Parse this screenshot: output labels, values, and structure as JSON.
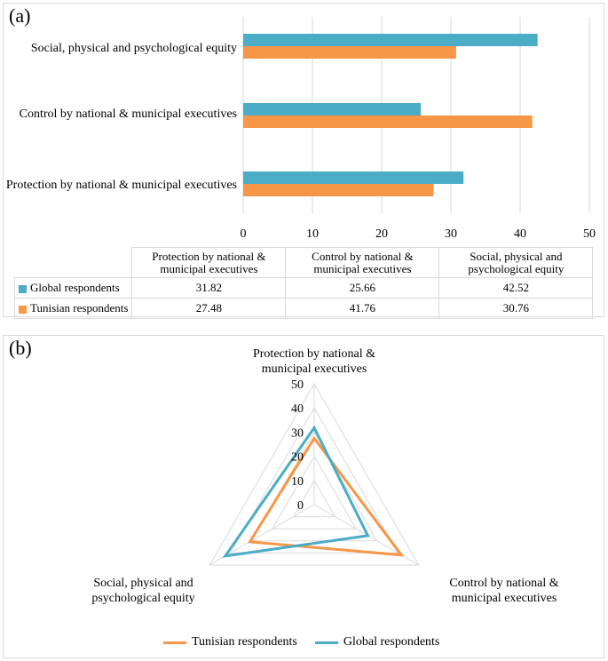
{
  "panel_a": {
    "label": "(a)"
  },
  "panel_b": {
    "label": "(b)"
  },
  "chart_data": [
    {
      "type": "bar",
      "orientation": "horizontal",
      "categories": [
        "Social, physical and psychological equity",
        "Control by national & municipal executives",
        "Protection by national & municipal executives"
      ],
      "series": [
        {
          "name": "Global respondents",
          "color": "#4bacc6",
          "values": [
            42.52,
            25.66,
            31.82
          ]
        },
        {
          "name": "Tunisian respondents",
          "color": "#f79646",
          "values": [
            30.76,
            41.76,
            27.48
          ]
        }
      ],
      "xlim": [
        0,
        50
      ],
      "xticks": [
        "0",
        "10",
        "20",
        "30",
        "40",
        "50"
      ],
      "gridlines": true,
      "data_table": {
        "headers": [
          "Protection by national & municipal executives",
          "Control by national & municipal executives",
          "Social, physical and psychological equity"
        ],
        "rows": [
          {
            "name": "Global respondents",
            "color": "#4bacc6",
            "values": [
              "31.82",
              "25.66",
              "42.52"
            ]
          },
          {
            "name": "Tunisian respondents",
            "color": "#f79646",
            "values": [
              "27.48",
              "41.76",
              "30.76"
            ]
          }
        ]
      }
    },
    {
      "type": "radar",
      "axes": [
        "Protection by national & municipal executives",
        "Control by national & municipal executives",
        "Social, physical and psychological equity"
      ],
      "rlim": [
        0,
        50
      ],
      "rticks": [
        "0",
        "10",
        "20",
        "30",
        "40",
        "50"
      ],
      "series": [
        {
          "name": "Tunisian respondents",
          "color": "#f79646",
          "values": [
            27.48,
            41.76,
            30.76
          ]
        },
        {
          "name": "Global respondents",
          "color": "#4bacc6",
          "values": [
            31.82,
            25.66,
            42.52
          ]
        }
      ],
      "legend": [
        "Tunisian respondents",
        "Global respondents"
      ],
      "legend_position": "bottom"
    }
  ]
}
